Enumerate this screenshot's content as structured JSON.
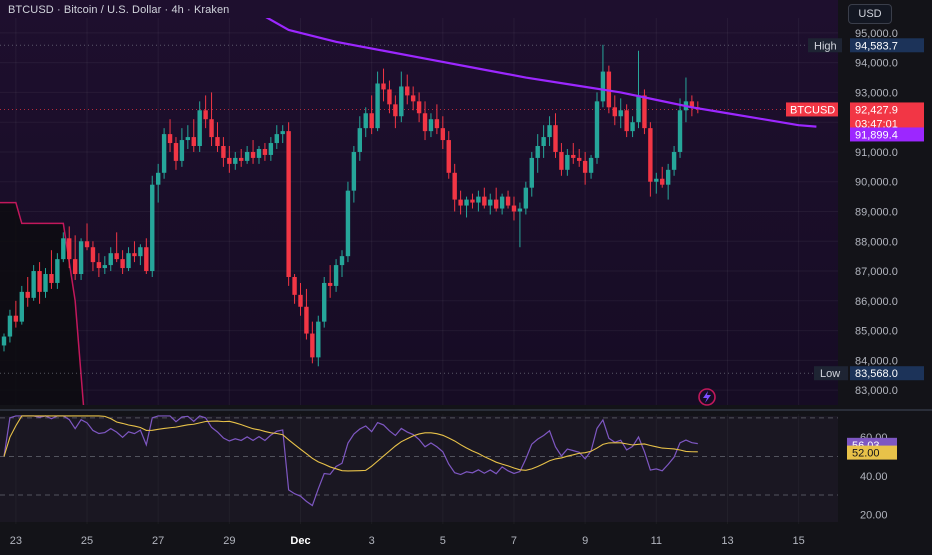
{
  "chart_data": {
    "type": "candlestick",
    "title": "BTCUSD · Bitcoin / U.S. Dollar · 4h · Kraken",
    "currency": "USD",
    "symbol": "BTCUSD",
    "timeframe": "4h",
    "exchange": "Kraken",
    "ylim": [
      82500,
      95500
    ],
    "y_ticks": [
      {
        "v": 95000,
        "label": "95,000.0"
      },
      {
        "v": 94000,
        "label": "94,000.0"
      },
      {
        "v": 93000,
        "label": "93,000.0"
      },
      {
        "v": 92000,
        "label": "92,000.0"
      },
      {
        "v": 91000,
        "label": "91,000.0"
      },
      {
        "v": 90000,
        "label": "90,000.0"
      },
      {
        "v": 89000,
        "label": "89,000.0"
      },
      {
        "v": 88000,
        "label": "88,000.0"
      },
      {
        "v": 87000,
        "label": "87,000.0"
      },
      {
        "v": 86000,
        "label": "86,000.0"
      },
      {
        "v": 85000,
        "label": "85,000.0"
      },
      {
        "v": 84000,
        "label": "84,000.0"
      },
      {
        "v": 83000,
        "label": "83,000.0"
      }
    ],
    "x_ticks": [
      {
        "i": 2,
        "label": "23"
      },
      {
        "i": 14,
        "label": "25"
      },
      {
        "i": 26,
        "label": "27"
      },
      {
        "i": 38,
        "label": "29"
      },
      {
        "i": 50,
        "label": "Dec"
      },
      {
        "i": 62,
        "label": "3"
      },
      {
        "i": 74,
        "label": "5"
      },
      {
        "i": 86,
        "label": "7"
      },
      {
        "i": 98,
        "label": "9"
      },
      {
        "i": 110,
        "label": "11"
      },
      {
        "i": 122,
        "label": "13"
      },
      {
        "i": 134,
        "label": "15"
      }
    ],
    "high_label": "High",
    "high_value": 94583.7,
    "high_text": "94,583.7",
    "low_label": "Low",
    "low_value": 83568.0,
    "low_text": "83,568.0",
    "last_price_text": "92,427.9",
    "last_price": 92427.9,
    "countdown": "03:47:01",
    "ma_value_text": "91,899.4",
    "ma_value": 91899.4,
    "colors": {
      "up": "#26a69a",
      "down": "#f23645",
      "ma": "#9c27ff",
      "bg_top": "#1e0f2e",
      "bg_bottom": "#160c24",
      "rsi": "#7e57c2",
      "rsi_ma": "#e8c249",
      "stop": "#c2185b"
    },
    "candles": [
      [
        84500,
        84900,
        84300,
        84800
      ],
      [
        84800,
        85700,
        84600,
        85500
      ],
      [
        85500,
        86000,
        85100,
        85300
      ],
      [
        85300,
        86500,
        85200,
        86300
      ],
      [
        86300,
        86800,
        85800,
        86100
      ],
      [
        86100,
        87200,
        86000,
        87000
      ],
      [
        87000,
        87300,
        85900,
        86300
      ],
      [
        86300,
        87100,
        86100,
        86900
      ],
      [
        86900,
        87700,
        86400,
        86600
      ],
      [
        86600,
        87600,
        86400,
        87400
      ],
      [
        87400,
        88300,
        87300,
        88100
      ],
      [
        88100,
        88500,
        87100,
        87400
      ],
      [
        87400,
        88200,
        86700,
        86900
      ],
      [
        86900,
        88100,
        86700,
        88000
      ],
      [
        88000,
        88600,
        87700,
        87800
      ],
      [
        87800,
        88000,
        87000,
        87300
      ],
      [
        87300,
        87600,
        86800,
        87100
      ],
      [
        87100,
        87500,
        86900,
        87200
      ],
      [
        87200,
        87800,
        87000,
        87600
      ],
      [
        87600,
        88300,
        87300,
        87400
      ],
      [
        87400,
        87700,
        86900,
        87100
      ],
      [
        87100,
        87800,
        87000,
        87600
      ],
      [
        87600,
        88000,
        87300,
        87500
      ],
      [
        87500,
        87900,
        87200,
        87800
      ],
      [
        87800,
        88100,
        86900,
        87000
      ],
      [
        87000,
        90200,
        86800,
        89900
      ],
      [
        89900,
        90600,
        89300,
        90300
      ],
      [
        90300,
        91800,
        90100,
        91600
      ],
      [
        91600,
        92100,
        91000,
        91300
      ],
      [
        91300,
        91500,
        90400,
        90700
      ],
      [
        90700,
        91800,
        90500,
        91400
      ],
      [
        91400,
        91900,
        91100,
        91500
      ],
      [
        91500,
        92100,
        91000,
        91200
      ],
      [
        91200,
        92700,
        91000,
        92400
      ],
      [
        92400,
        92900,
        91800,
        92100
      ],
      [
        92100,
        93000,
        91200,
        91500
      ],
      [
        91500,
        92000,
        91000,
        91200
      ],
      [
        91200,
        91500,
        90500,
        90800
      ],
      [
        90800,
        91200,
        90300,
        90600
      ],
      [
        90600,
        91000,
        90400,
        90800
      ],
      [
        90800,
        91100,
        90500,
        90700
      ],
      [
        90700,
        91200,
        90600,
        91000
      ],
      [
        91000,
        91400,
        90600,
        90800
      ],
      [
        90800,
        91200,
        90600,
        91100
      ],
      [
        91100,
        91300,
        90700,
        90900
      ],
      [
        90900,
        91500,
        90700,
        91300
      ],
      [
        91300,
        91900,
        91100,
        91600
      ],
      [
        91600,
        91900,
        91300,
        91700
      ],
      [
        91700,
        92000,
        86500,
        86800
      ],
      [
        86800,
        86900,
        85900,
        86200
      ],
      [
        86200,
        86600,
        85500,
        85800
      ],
      [
        85800,
        86400,
        84700,
        84900
      ],
      [
        84900,
        85300,
        83900,
        84100
      ],
      [
        84100,
        85500,
        83800,
        85300
      ],
      [
        85300,
        86800,
        85100,
        86600
      ],
      [
        86600,
        87200,
        86100,
        86500
      ],
      [
        86500,
        87400,
        86300,
        87200
      ],
      [
        87200,
        87700,
        86800,
        87500
      ],
      [
        87500,
        90000,
        87300,
        89700
      ],
      [
        89700,
        91200,
        89300,
        91000
      ],
      [
        91000,
        92200,
        90700,
        91800
      ],
      [
        91800,
        92500,
        91500,
        92300
      ],
      [
        92300,
        92900,
        91600,
        91800
      ],
      [
        91800,
        93700,
        91700,
        93300
      ],
      [
        93300,
        93800,
        92700,
        93100
      ],
      [
        93100,
        93400,
        92300,
        92600
      ],
      [
        92600,
        92900,
        91800,
        92200
      ],
      [
        92200,
        93700,
        92000,
        93200
      ],
      [
        93200,
        93600,
        92600,
        92900
      ],
      [
        92900,
        93200,
        92400,
        92700
      ],
      [
        92700,
        93000,
        92000,
        92300
      ],
      [
        92300,
        92700,
        91400,
        91700
      ],
      [
        91700,
        92300,
        91500,
        92100
      ],
      [
        92100,
        92600,
        91600,
        91800
      ],
      [
        91800,
        92200,
        91100,
        91400
      ],
      [
        91400,
        91700,
        90100,
        90300
      ],
      [
        90300,
        90600,
        89000,
        89400
      ],
      [
        89400,
        89700,
        88900,
        89200
      ],
      [
        89200,
        89500,
        88800,
        89400
      ],
      [
        89400,
        89600,
        89100,
        89300
      ],
      [
        89300,
        89700,
        89000,
        89500
      ],
      [
        89500,
        89800,
        89100,
        89200
      ],
      [
        89200,
        89600,
        88900,
        89400
      ],
      [
        89400,
        89800,
        89000,
        89100
      ],
      [
        89100,
        89600,
        88900,
        89500
      ],
      [
        89500,
        89700,
        89100,
        89200
      ],
      [
        89200,
        89500,
        88700,
        89000
      ],
      [
        89000,
        89300,
        87800,
        89100
      ],
      [
        89100,
        90000,
        88900,
        89800
      ],
      [
        89800,
        91000,
        89500,
        90800
      ],
      [
        90800,
        91600,
        90300,
        91200
      ],
      [
        91200,
        91900,
        90800,
        91500
      ],
      [
        91500,
        92200,
        91200,
        91900
      ],
      [
        91900,
        92300,
        90800,
        91000
      ],
      [
        91000,
        91300,
        90200,
        90400
      ],
      [
        90400,
        91100,
        90200,
        90900
      ],
      [
        90900,
        91300,
        90600,
        90800
      ],
      [
        90800,
        91100,
        90500,
        90700
      ],
      [
        90700,
        91000,
        89900,
        90300
      ],
      [
        90300,
        90900,
        90100,
        90800
      ],
      [
        90800,
        93000,
        90600,
        92700
      ],
      [
        92700,
        94600,
        92500,
        93700
      ],
      [
        93700,
        93900,
        92300,
        92500
      ],
      [
        92500,
        92900,
        91900,
        92200
      ],
      [
        92200,
        92800,
        91800,
        92400
      ],
      [
        92400,
        92600,
        91500,
        91700
      ],
      [
        91700,
        92200,
        91500,
        92000
      ],
      [
        92000,
        94400,
        91800,
        92900
      ],
      [
        92900,
        93100,
        91600,
        91800
      ],
      [
        91800,
        92000,
        89500,
        90000
      ],
      [
        90000,
        90300,
        89600,
        90100
      ],
      [
        90100,
        90500,
        89800,
        89900
      ],
      [
        89900,
        90600,
        89400,
        90400
      ],
      [
        90400,
        91200,
        90200,
        91000
      ],
      [
        91000,
        92800,
        90800,
        92400
      ],
      [
        92400,
        93500,
        92000,
        92700
      ],
      [
        92700,
        92900,
        92200,
        92500
      ],
      [
        92500,
        92700,
        92300,
        92428
      ]
    ],
    "ma_points": [
      [
        40,
        96000
      ],
      [
        48,
        95100
      ],
      [
        56,
        94700
      ],
      [
        64,
        94400
      ],
      [
        72,
        94100
      ],
      [
        80,
        93800
      ],
      [
        88,
        93500
      ],
      [
        96,
        93250
      ],
      [
        104,
        93000
      ],
      [
        110,
        92750
      ],
      [
        116,
        92500
      ],
      [
        122,
        92300
      ],
      [
        128,
        92100
      ],
      [
        134,
        91900
      ],
      [
        137,
        91850
      ]
    ],
    "stop_line": [
      [
        -2,
        89300
      ],
      [
        2,
        89300
      ],
      [
        3,
        88600
      ],
      [
        10,
        88600
      ],
      [
        12,
        86000
      ],
      [
        14,
        81000
      ]
    ],
    "rsi": {
      "ylim": [
        15,
        72
      ],
      "levels": [
        70,
        50,
        30
      ],
      "tick_labels": [
        {
          "v": 60,
          "label": "60.00"
        },
        {
          "v": 40,
          "label": "40.00"
        },
        {
          "v": 20,
          "label": "20.00"
        }
      ],
      "value_text": "56.03",
      "value": 56.03,
      "ma_value_text": "52.00",
      "ma_value": 52.0
    }
  }
}
